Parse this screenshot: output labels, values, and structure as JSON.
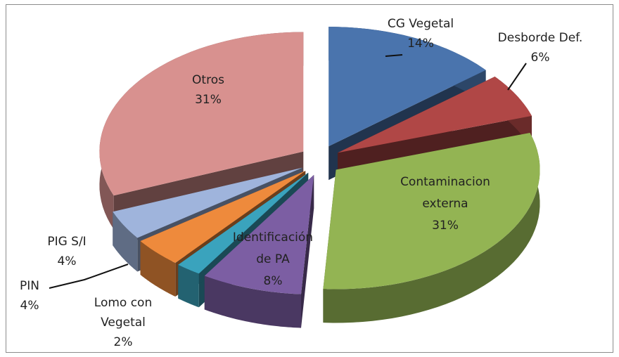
{
  "chart_data": {
    "type": "pie3d",
    "categories": [
      "CG Vegetal",
      "Desborde Def.",
      "Contaminacion externa",
      "Identificación de PA",
      "Lomo con Vegetal",
      "PIN",
      "PIG S/I",
      "Otros"
    ],
    "values": [
      14,
      6,
      31,
      8,
      2,
      4,
      4,
      31
    ],
    "value_labels": [
      "14%",
      "6%",
      "31%",
      "8%",
      "2%",
      "4%",
      "4%",
      "31%"
    ],
    "colors": [
      "#4a74ad",
      "#b04746",
      "#93b453",
      "#7c5ea3",
      "#3aa3bd",
      "#ee8a3c",
      "#9fb4dc",
      "#d8918f"
    ],
    "exploded": true
  }
}
